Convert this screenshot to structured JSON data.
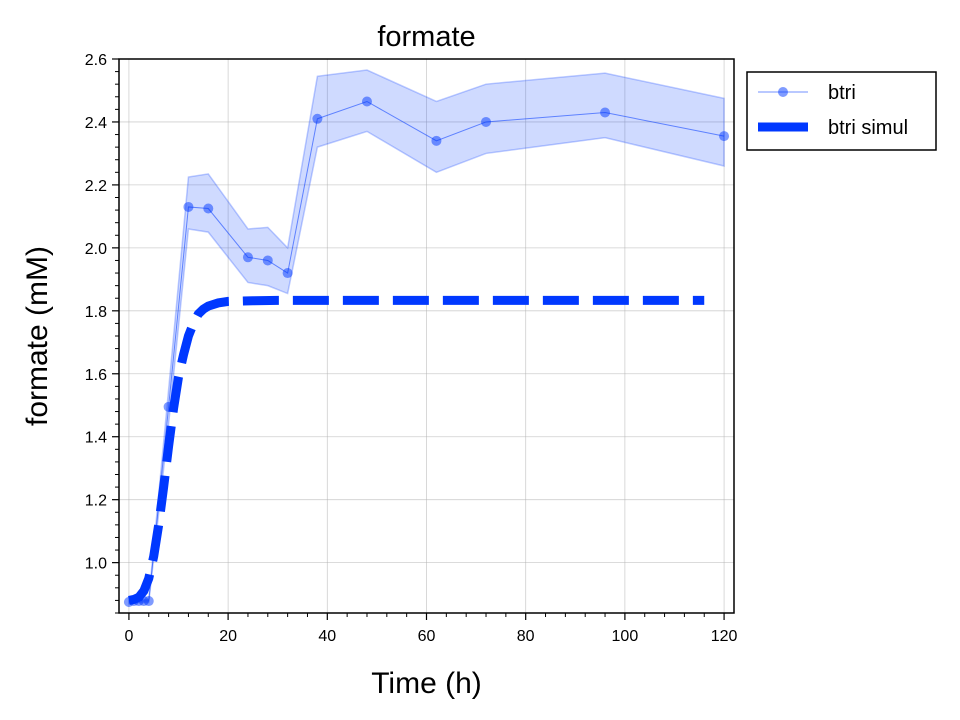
{
  "chart_data": {
    "type": "line",
    "title": "formate",
    "xlabel": "Time (h)",
    "ylabel": "formate (mM)",
    "xlim": [
      -2,
      122
    ],
    "ylim": [
      0.84,
      2.6
    ],
    "xticks": [
      0,
      20,
      40,
      60,
      80,
      100,
      120
    ],
    "yticks": [
      1.0,
      1.2,
      1.4,
      1.6,
      1.8,
      2.0,
      2.2,
      2.4,
      2.6
    ],
    "grid": true,
    "legend_position": "outside-top-right",
    "series": [
      {
        "name": "btri",
        "kind": "markers-line",
        "color": "#0038ff",
        "x": [
          0,
          1,
          2,
          3,
          4,
          8,
          12,
          16,
          24,
          28,
          32,
          38,
          48,
          62,
          72,
          96,
          120
        ],
        "y": [
          0.875,
          0.878,
          0.878,
          0.878,
          0.878,
          1.495,
          2.13,
          2.125,
          1.97,
          1.96,
          1.92,
          2.41,
          2.465,
          2.34,
          2.4,
          2.43,
          2.355
        ],
        "lower": [
          0.87,
          0.873,
          0.873,
          0.873,
          0.873,
          1.44,
          2.06,
          2.05,
          1.89,
          1.88,
          1.855,
          2.32,
          2.37,
          2.24,
          2.3,
          2.35,
          2.26
        ],
        "upper": [
          0.88,
          0.883,
          0.883,
          0.883,
          0.883,
          1.55,
          2.225,
          2.235,
          2.06,
          2.065,
          2.0,
          2.545,
          2.565,
          2.465,
          2.52,
          2.555,
          2.475
        ]
      },
      {
        "name": "btri simul",
        "kind": "dashed-line",
        "color": "#0038ff",
        "x": [
          0,
          1,
          2,
          3,
          4,
          5,
          6,
          7,
          8,
          9,
          10,
          11,
          12,
          13,
          14,
          15,
          16,
          18,
          20,
          25,
          30,
          40,
          60,
          80,
          100,
          116
        ],
        "y": [
          0.88,
          0.883,
          0.89,
          0.91,
          0.95,
          1.02,
          1.12,
          1.24,
          1.37,
          1.49,
          1.59,
          1.66,
          1.72,
          1.76,
          1.79,
          1.805,
          1.815,
          1.825,
          1.83,
          1.832,
          1.833,
          1.833,
          1.833,
          1.833,
          1.833,
          1.833
        ]
      }
    ]
  }
}
